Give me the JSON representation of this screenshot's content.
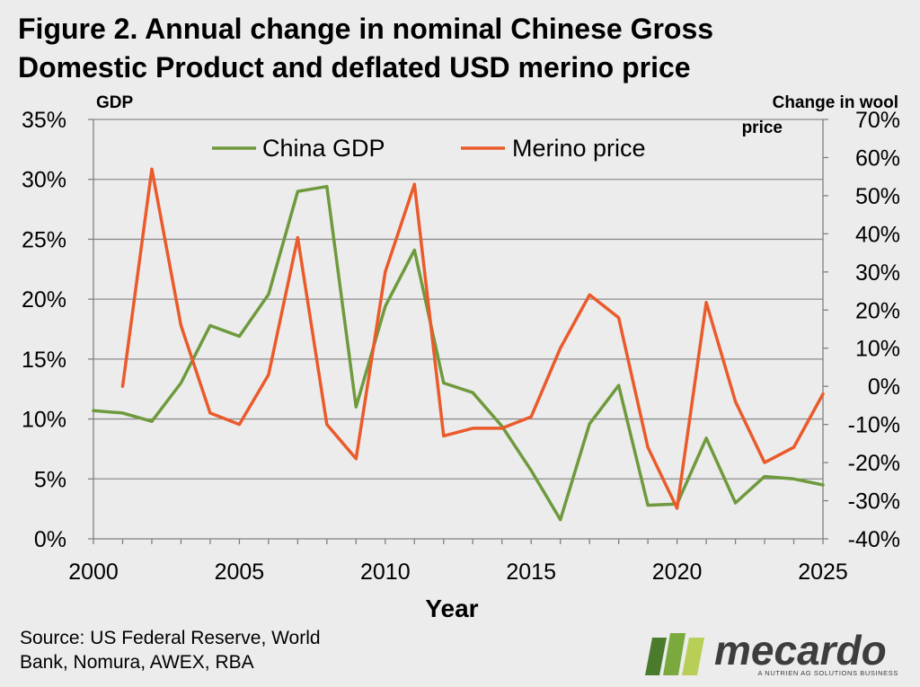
{
  "title_line1": "Figure 2. Annual change in nominal Chinese Gross",
  "title_line2": "Domestic Product and deflated USD merino price",
  "source_line1": "Source: US Federal Reserve, World",
  "source_line2": "Bank, Nomura, AWEX, RBA",
  "logo": {
    "text": "mecardo",
    "tagline": "A NUTRIEN AG SOLUTIONS BUSINESS",
    "colors": [
      "#4a7a2c",
      "#7aaa3e",
      "#b8cf57"
    ]
  },
  "colors": {
    "gdp": "#6e9a3d",
    "merino": "#ea5a2a",
    "grid": "#8c8c8c",
    "axis": "#808080",
    "background": "#ececec"
  },
  "chart_data": {
    "type": "line",
    "xlabel": "Year",
    "ylabel_left": "GDP",
    "ylabel_right_line1": "Change in wool",
    "ylabel_right_line2": "price",
    "xlim": [
      2000,
      2025
    ],
    "ylim_left": [
      0,
      0.35
    ],
    "ylim_right": [
      -0.4,
      0.7
    ],
    "x_ticks": [
      2000,
      2005,
      2010,
      2015,
      2020,
      2025
    ],
    "y_ticks_left": [
      "0%",
      "5%",
      "10%",
      "15%",
      "20%",
      "25%",
      "30%",
      "35%"
    ],
    "y_ticks_right": [
      "-40%",
      "-30%",
      "-20%",
      "-10%",
      "0%",
      "10%",
      "20%",
      "30%",
      "40%",
      "50%",
      "60%",
      "70%"
    ],
    "grid": true,
    "legend_position": "top",
    "series": [
      {
        "name": "China GDP",
        "axis": "left",
        "x": [
          2000,
          2001,
          2002,
          2003,
          2004,
          2005,
          2006,
          2007,
          2008,
          2009,
          2010,
          2011,
          2012,
          2013,
          2014,
          2015,
          2016,
          2017,
          2018,
          2019,
          2020,
          2021,
          2022,
          2023,
          2024,
          2025
        ],
        "values": [
          0.107,
          0.105,
          0.098,
          0.13,
          0.178,
          0.169,
          0.204,
          0.29,
          0.294,
          0.11,
          0.194,
          0.241,
          0.13,
          0.122,
          0.094,
          0.057,
          0.016,
          0.096,
          0.128,
          0.028,
          0.029,
          0.084,
          0.03,
          0.052,
          0.05,
          0.045
        ]
      },
      {
        "name": "Merino price",
        "axis": "right",
        "x": [
          2001,
          2002,
          2003,
          2004,
          2005,
          2006,
          2007,
          2008,
          2009,
          2010,
          2011,
          2012,
          2013,
          2014,
          2015,
          2016,
          2017,
          2018,
          2019,
          2020,
          2021,
          2022,
          2023,
          2024,
          2025
        ],
        "values": [
          0.0,
          0.57,
          0.16,
          -0.07,
          -0.1,
          0.03,
          0.39,
          -0.1,
          -0.19,
          0.3,
          0.53,
          -0.13,
          -0.11,
          -0.11,
          -0.08,
          0.1,
          0.24,
          0.18,
          -0.16,
          -0.32,
          0.22,
          -0.04,
          -0.2,
          -0.16,
          -0.02
        ]
      }
    ]
  }
}
